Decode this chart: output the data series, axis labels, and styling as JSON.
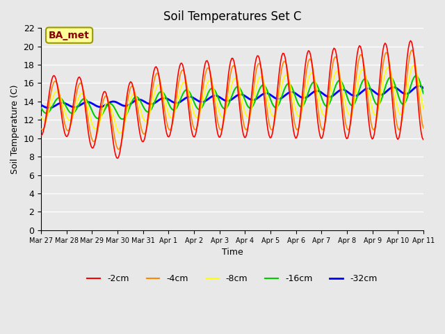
{
  "title": "Soil Temperatures Set C",
  "xlabel": "Time",
  "ylabel": "Soil Temperature (C)",
  "ylim": [
    0,
    22
  ],
  "yticks": [
    0,
    2,
    4,
    6,
    8,
    10,
    12,
    14,
    16,
    18,
    20,
    22
  ],
  "annotation_text": "BA_met",
  "annotation_color": "#8B0000",
  "annotation_bg": "#FFFF99",
  "plot_bg": "#E8E8E8",
  "grid_color": "#FFFFFF",
  "series": {
    "-2cm": {
      "color": "#FF0000",
      "lw": 1.2
    },
    "-4cm": {
      "color": "#FF8800",
      "lw": 1.2
    },
    "-8cm": {
      "color": "#FFFF00",
      "lw": 1.2
    },
    "-16cm": {
      "color": "#00CC00",
      "lw": 1.5
    },
    "-32cm": {
      "color": "#0000FF",
      "lw": 2.0
    }
  },
  "xtick_labels": [
    "Mar 27",
    "Mar 28",
    "Mar 29",
    "Mar 30",
    "Mar 31",
    "Apr 1",
    "Apr 2",
    "Apr 3",
    "Apr 4",
    "Apr 5",
    "Apr 6",
    "Apr 7",
    "Apr 8",
    "Apr 9",
    "Apr 10",
    "Apr 11"
  ],
  "n_days": 15,
  "pts_per_day": 24
}
